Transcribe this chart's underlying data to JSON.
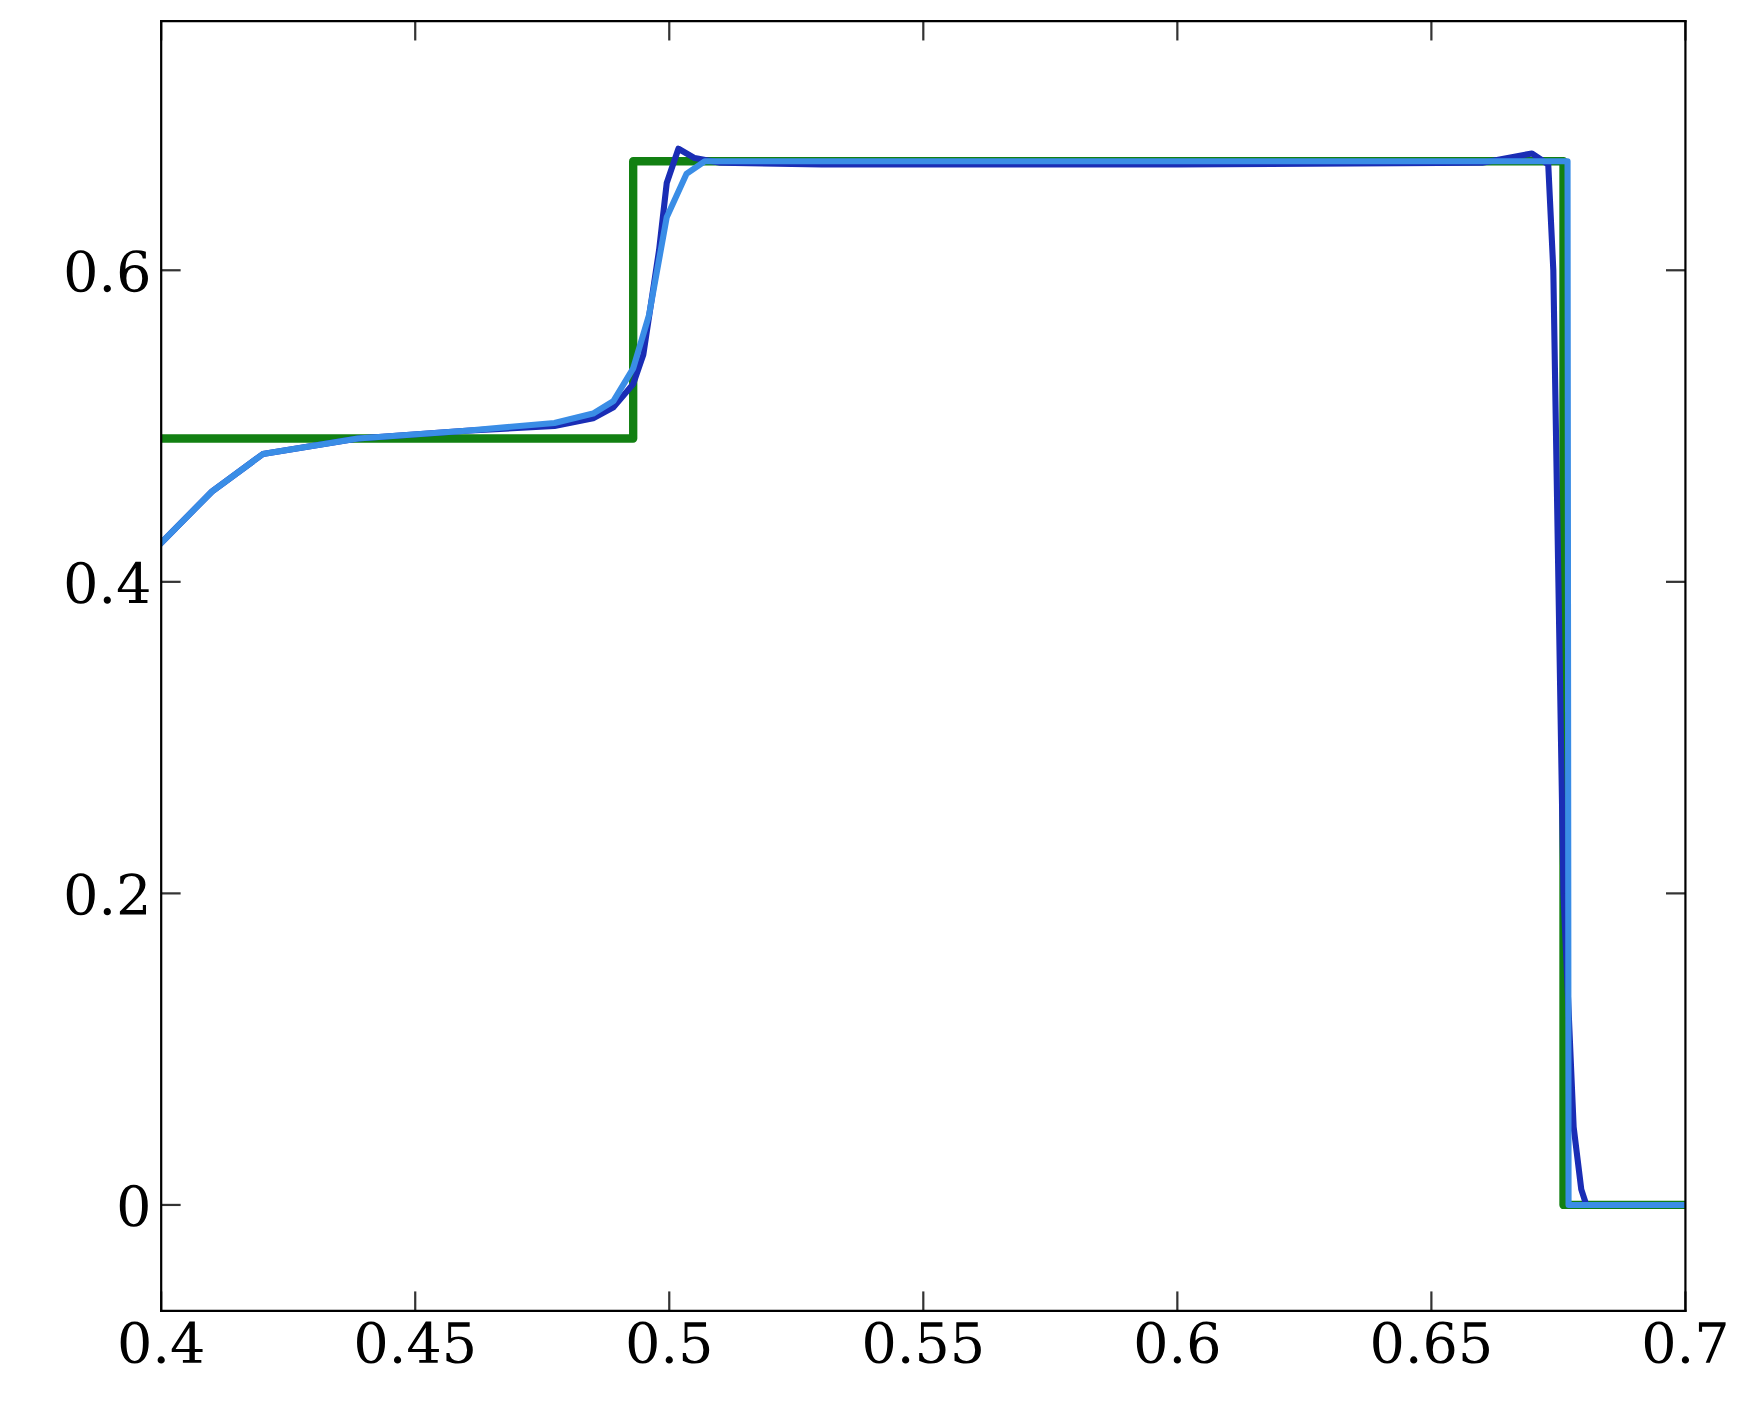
{
  "chart_data": {
    "type": "line",
    "xlim": [
      0.4,
      0.7
    ],
    "ylim": [
      -0.068,
      0.76
    ],
    "xticks": [
      0.4,
      0.45,
      0.5,
      0.55,
      0.6,
      0.65,
      0.7
    ],
    "yticks": [
      0,
      0.2,
      0.4,
      0.6
    ],
    "grid": false,
    "legend": false,
    "marker": "none",
    "line_style": "solid",
    "series": [
      {
        "type": "step",
        "color": "#128012",
        "x": [
          0.4,
          0.4929,
          0.4929,
          0.676,
          0.676,
          0.7
        ],
        "values": [
          0.492,
          0.492,
          0.67,
          0.67,
          0,
          0
        ]
      },
      {
        "color": "#1a2db5",
        "x": [
          0.4,
          0.41,
          0.42,
          0.4387,
          0.46,
          0.4774,
          0.485,
          0.489,
          0.4929,
          0.4949,
          0.498,
          0.4995,
          0.5018,
          0.505,
          0.51,
          0.53,
          0.6,
          0.66,
          0.6698,
          0.673,
          0.674,
          0.675,
          0.676,
          0.678,
          0.6795,
          0.6805,
          0.7
        ],
        "values": [
          0.425,
          0.458,
          0.482,
          0.492,
          0.497,
          0.5,
          0.505,
          0.512,
          0.527,
          0.546,
          0.613,
          0.656,
          0.678,
          0.672,
          0.669,
          0.668,
          0.668,
          0.669,
          0.675,
          0.668,
          0.6,
          0.4,
          0.2,
          0.05,
          0.01,
          0,
          0
        ]
      },
      {
        "color": "#3a8de6",
        "x": [
          0.4,
          0.41,
          0.42,
          0.4387,
          0.46,
          0.4774,
          0.485,
          0.489,
          0.4929,
          0.496,
          0.4995,
          0.5034,
          0.507,
          0.53,
          0.6,
          0.676,
          0.6768,
          0.677,
          0.7
        ],
        "values": [
          0.425,
          0.458,
          0.482,
          0.492,
          0.497,
          0.502,
          0.508,
          0.516,
          0.537,
          0.571,
          0.634,
          0.662,
          0.67,
          0.67,
          0.67,
          0.67,
          0.67,
          0,
          0
        ]
      }
    ]
  }
}
